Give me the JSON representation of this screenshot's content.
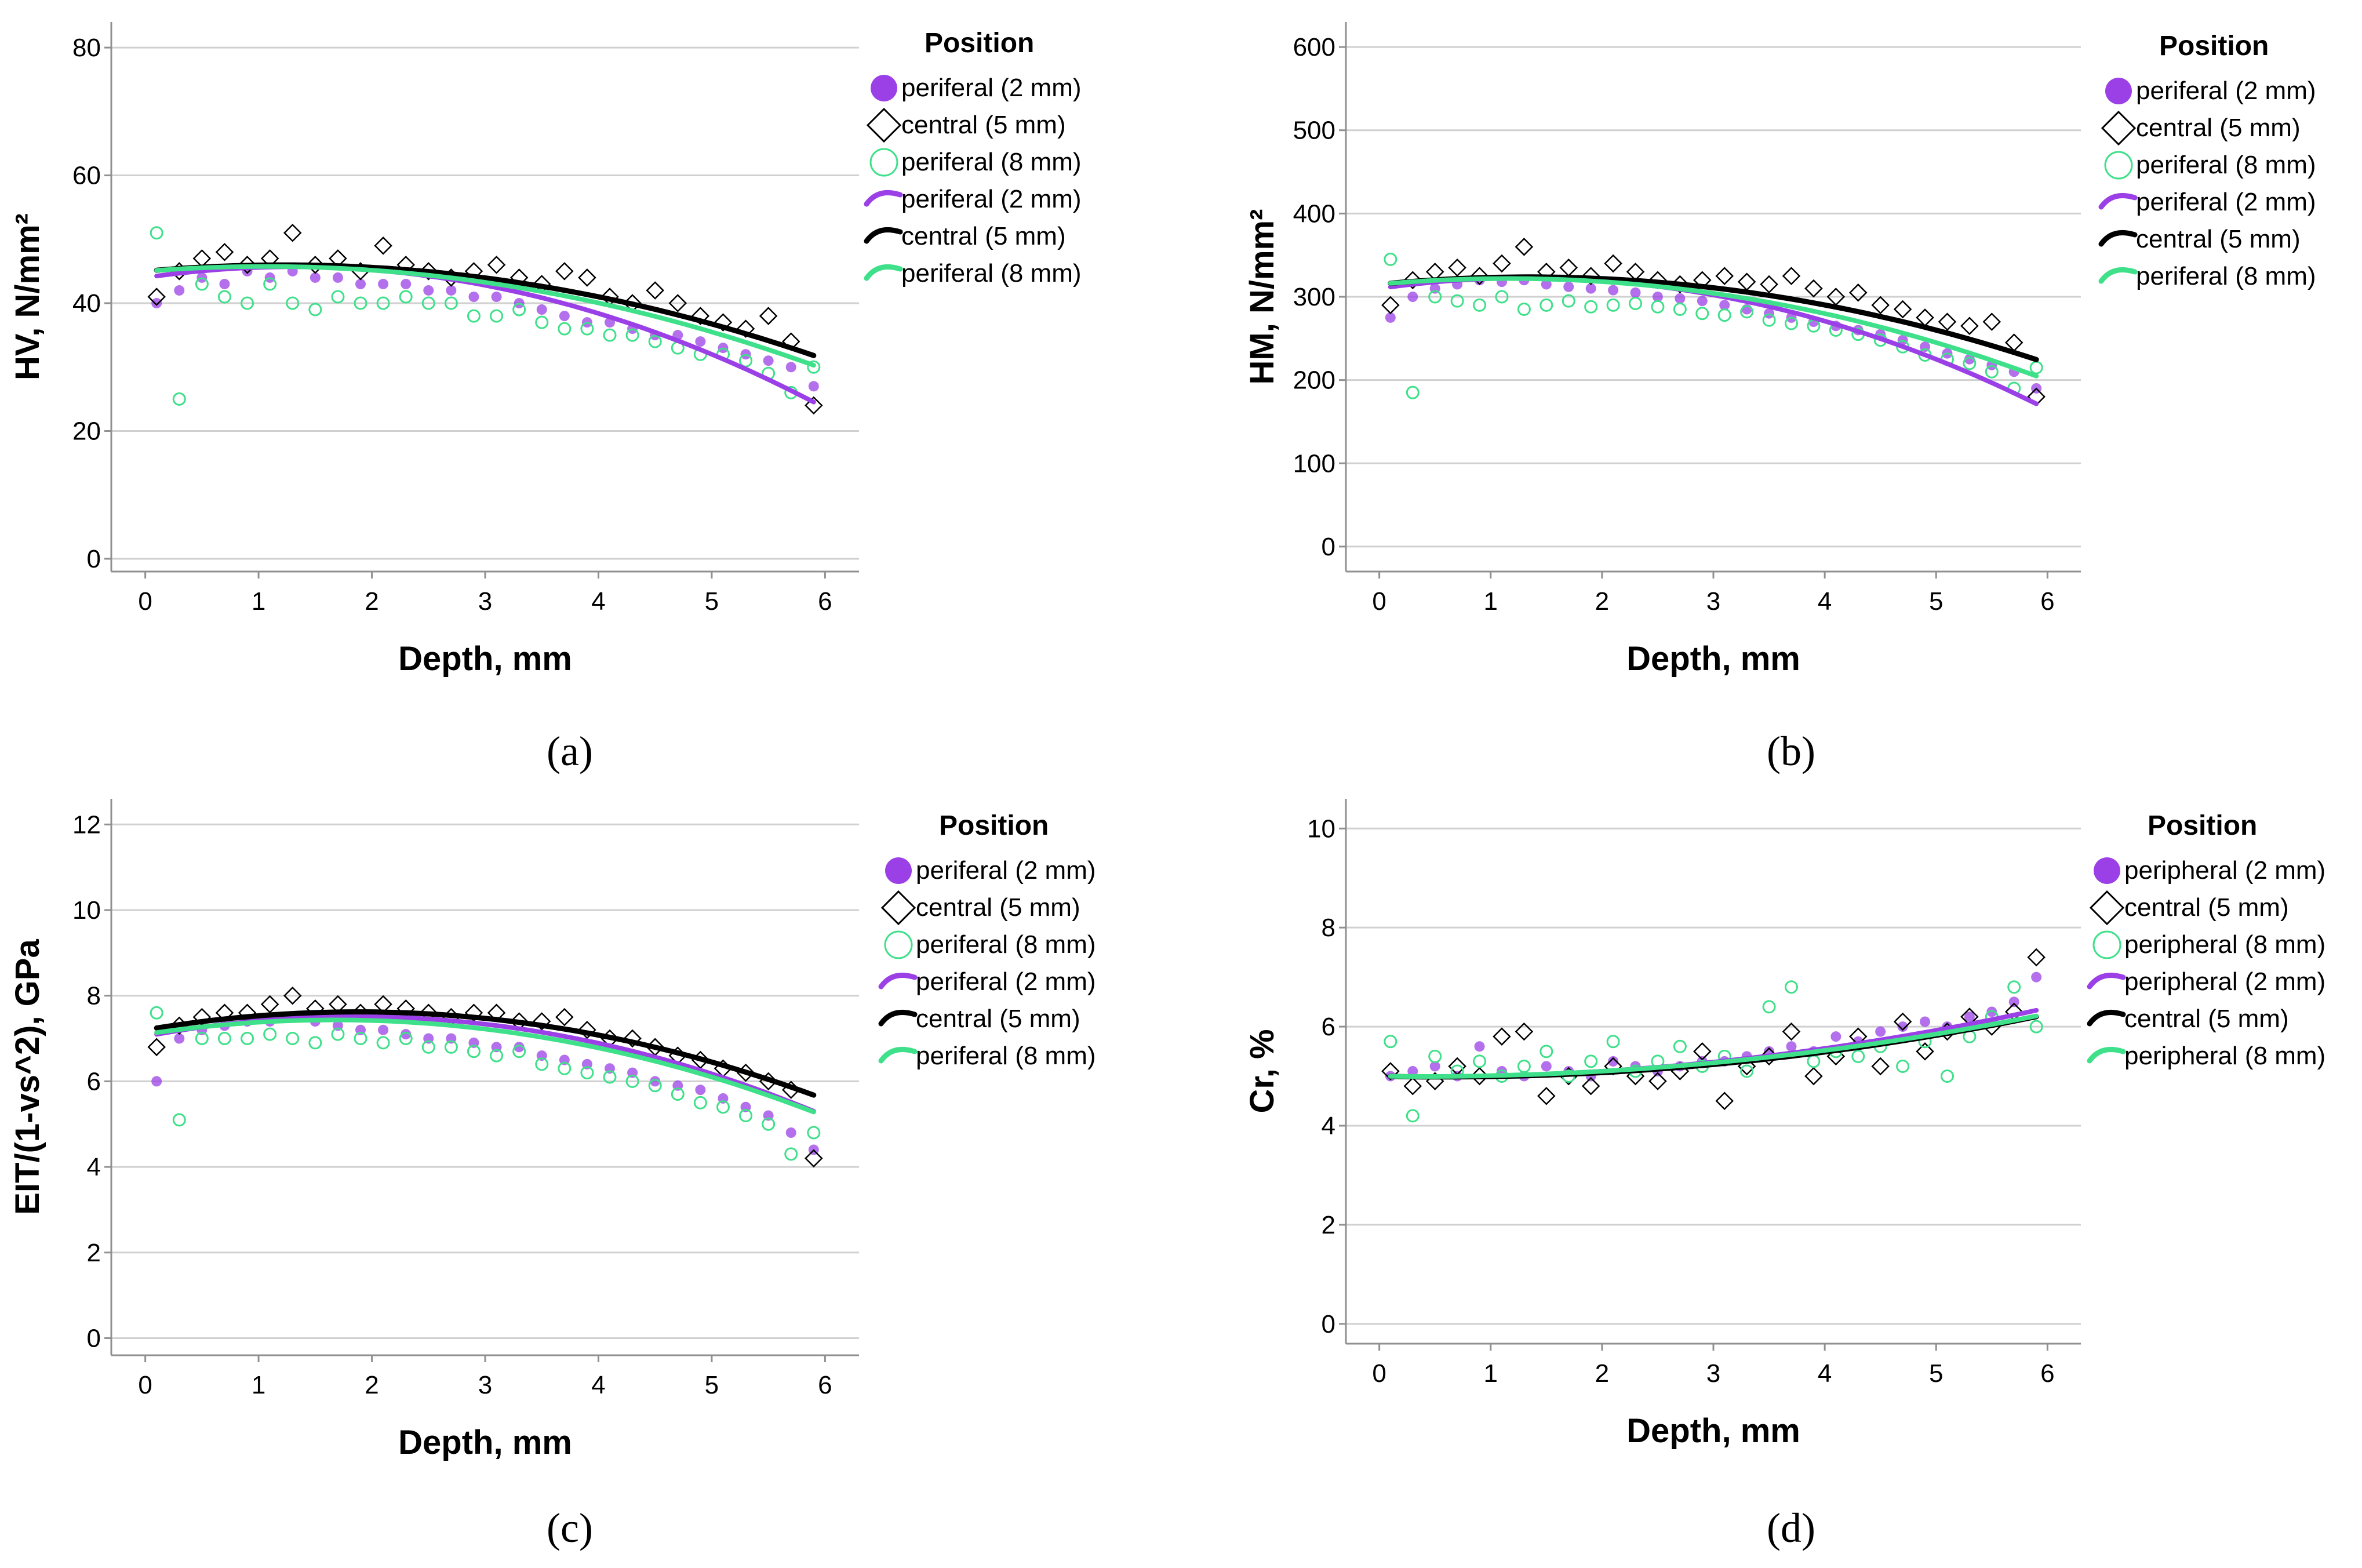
{
  "colors": {
    "purple": "#9b40e6",
    "black": "#000000",
    "green": "#3fe08a",
    "grid": "#d0d0d0",
    "axis": "#909090"
  },
  "chart_data": [
    {
      "id": "a",
      "type": "scatter",
      "caption": "(a)",
      "xlabel": "Depth, mm",
      "ylabel": "HV, N/mm²",
      "xlim": [
        -0.3,
        6.3
      ],
      "ylim": [
        -2,
        84
      ],
      "xticks": [
        "0",
        "1",
        "2",
        "3",
        "4",
        "5",
        "6"
      ],
      "yticks": [
        "0",
        "20",
        "40",
        "60",
        "80"
      ],
      "legend": {
        "title": "Position",
        "entries": [
          "periferal (2 mm)",
          "central (5 mm)",
          "periferal (8 mm)",
          "periferal (2 mm)",
          "central (5 mm)",
          "periferal (8 mm)"
        ]
      },
      "series": [
        {
          "name": "periferal (2 mm)",
          "marker": "filled-circle",
          "color": "purple",
          "x": [
            0.1,
            0.3,
            0.5,
            0.7,
            0.9,
            1.1,
            1.3,
            1.5,
            1.7,
            1.9,
            2.1,
            2.3,
            2.5,
            2.7,
            2.9,
            3.1,
            3.3,
            3.5,
            3.7,
            3.9,
            4.1,
            4.3,
            4.5,
            4.7,
            4.9,
            5.1,
            5.3,
            5.5,
            5.7,
            5.9
          ],
          "y": [
            40,
            42,
            44,
            43,
            45,
            44,
            45,
            44,
            44,
            43,
            43,
            43,
            42,
            42,
            41,
            41,
            40,
            39,
            38,
            37,
            37,
            36,
            35,
            35,
            34,
            33,
            32,
            31,
            30,
            27
          ]
        },
        {
          "name": "central (5 mm)",
          "marker": "diamond",
          "color": "black",
          "x": [
            0.1,
            0.3,
            0.5,
            0.7,
            0.9,
            1.1,
            1.3,
            1.5,
            1.7,
            1.9,
            2.1,
            2.3,
            2.5,
            2.7,
            2.9,
            3.1,
            3.3,
            3.5,
            3.7,
            3.9,
            4.1,
            4.3,
            4.5,
            4.7,
            4.9,
            5.1,
            5.3,
            5.5,
            5.7,
            5.9
          ],
          "y": [
            41,
            45,
            47,
            48,
            46,
            47,
            51,
            46,
            47,
            45,
            49,
            46,
            45,
            44,
            45,
            46,
            44,
            43,
            45,
            44,
            41,
            40,
            42,
            40,
            38,
            37,
            36,
            38,
            34,
            24
          ]
        },
        {
          "name": "periferal (8 mm)",
          "marker": "open-circle",
          "color": "green",
          "x": [
            0.1,
            0.3,
            0.5,
            0.7,
            0.9,
            1.1,
            1.3,
            1.5,
            1.7,
            1.9,
            2.1,
            2.3,
            2.5,
            2.7,
            2.9,
            3.1,
            3.3,
            3.5,
            3.7,
            3.9,
            4.1,
            4.3,
            4.5,
            4.7,
            4.9,
            5.1,
            5.3,
            5.5,
            5.7,
            5.9
          ],
          "y": [
            51,
            25,
            43,
            41,
            40,
            43,
            40,
            39,
            41,
            40,
            40,
            41,
            40,
            40,
            38,
            38,
            39,
            37,
            36,
            36,
            35,
            35,
            34,
            33,
            32,
            32,
            31,
            29,
            26,
            30
          ]
        },
        {
          "name": "periferal (2 mm)",
          "marker": "line",
          "color": "purple",
          "fit": [
            44.0,
            2.6,
            -1.0
          ]
        },
        {
          "name": "central (5 mm)",
          "marker": "line",
          "color": "black",
          "fit": [
            45.0,
            1.6,
            -0.65
          ]
        },
        {
          "name": "periferal (8 mm)",
          "marker": "line",
          "color": "green",
          "fit": [
            45.0,
            1.4,
            -0.66
          ]
        }
      ]
    },
    {
      "id": "b",
      "type": "scatter",
      "caption": "(b)",
      "xlabel": "Depth, mm",
      "ylabel": "HM, N/mm²",
      "xlim": [
        -0.3,
        6.3
      ],
      "ylim": [
        -30,
        630
      ],
      "xticks": [
        "0",
        "1",
        "2",
        "3",
        "4",
        "5",
        "6"
      ],
      "yticks": [
        "0",
        "100",
        "200",
        "300",
        "400",
        "500",
        "600"
      ],
      "legend": {
        "title": "Position",
        "entries": [
          "periferal (2 mm)",
          "central (5 mm)",
          "periferal (8 mm)",
          "periferal (2 mm)",
          "central (5 mm)",
          "periferal (8 mm)"
        ]
      },
      "series": [
        {
          "name": "periferal (2 mm)",
          "marker": "filled-circle",
          "color": "purple",
          "x": [
            0.1,
            0.3,
            0.5,
            0.7,
            0.9,
            1.1,
            1.3,
            1.5,
            1.7,
            1.9,
            2.1,
            2.3,
            2.5,
            2.7,
            2.9,
            3.1,
            3.3,
            3.5,
            3.7,
            3.9,
            4.1,
            4.3,
            4.5,
            4.7,
            4.9,
            5.1,
            5.3,
            5.5,
            5.7,
            5.9
          ],
          "y": [
            275,
            300,
            310,
            315,
            320,
            318,
            320,
            315,
            312,
            310,
            308,
            305,
            300,
            298,
            295,
            290,
            285,
            280,
            275,
            270,
            265,
            260,
            255,
            248,
            240,
            232,
            225,
            218,
            210,
            190
          ]
        },
        {
          "name": "central (5 mm)",
          "marker": "diamond",
          "color": "black",
          "x": [
            0.1,
            0.3,
            0.5,
            0.7,
            0.9,
            1.1,
            1.3,
            1.5,
            1.7,
            1.9,
            2.1,
            2.3,
            2.5,
            2.7,
            2.9,
            3.1,
            3.3,
            3.5,
            3.7,
            3.9,
            4.1,
            4.3,
            4.5,
            4.7,
            4.9,
            5.1,
            5.3,
            5.5,
            5.7,
            5.9
          ],
          "y": [
            290,
            320,
            330,
            335,
            325,
            340,
            360,
            330,
            335,
            325,
            340,
            330,
            320,
            315,
            320,
            325,
            318,
            315,
            325,
            310,
            300,
            305,
            290,
            285,
            275,
            270,
            265,
            270,
            245,
            180
          ]
        },
        {
          "name": "periferal (8 mm)",
          "marker": "open-circle",
          "color": "green",
          "x": [
            0.1,
            0.3,
            0.5,
            0.7,
            0.9,
            1.1,
            1.3,
            1.5,
            1.7,
            1.9,
            2.1,
            2.3,
            2.5,
            2.7,
            2.9,
            3.1,
            3.3,
            3.5,
            3.7,
            3.9,
            4.1,
            4.3,
            4.5,
            4.7,
            4.9,
            5.1,
            5.3,
            5.5,
            5.7,
            5.9
          ],
          "y": [
            345,
            185,
            300,
            295,
            290,
            300,
            285,
            290,
            295,
            288,
            290,
            292,
            288,
            285,
            280,
            278,
            282,
            272,
            268,
            265,
            260,
            255,
            248,
            240,
            230,
            225,
            220,
            210,
            190,
            215
          ]
        },
        {
          "name": "periferal (2 mm)",
          "marker": "line",
          "color": "purple",
          "fit": [
            310,
            19,
            -7.2
          ]
        },
        {
          "name": "central (5 mm)",
          "marker": "line",
          "color": "black",
          "fit": [
            315,
            13,
            -4.8
          ]
        },
        {
          "name": "periferal (8 mm)",
          "marker": "line",
          "color": "green",
          "fit": [
            315,
            12,
            -5.2
          ]
        }
      ]
    },
    {
      "id": "c",
      "type": "scatter",
      "caption": "(c)",
      "xlabel": "Depth, mm",
      "ylabel": "EIT/(1-vs^2), GPa",
      "xlim": [
        -0.3,
        6.3
      ],
      "ylim": [
        -0.4,
        12.6
      ],
      "xticks": [
        "0",
        "1",
        "2",
        "3",
        "4",
        "5",
        "6"
      ],
      "yticks": [
        "0",
        "2",
        "4",
        "6",
        "8",
        "10",
        "12"
      ],
      "legend": {
        "title": "Position",
        "entries": [
          "periferal (2 mm)",
          "central (5 mm)",
          "periferal (8 mm)",
          "periferal (2 mm)",
          "central (5 mm)",
          "periferal (8 mm)"
        ]
      },
      "series": [
        {
          "name": "periferal (2 mm)",
          "marker": "filled-circle",
          "color": "purple",
          "x": [
            0.1,
            0.3,
            0.5,
            0.7,
            0.9,
            1.1,
            1.3,
            1.5,
            1.7,
            1.9,
            2.1,
            2.3,
            2.5,
            2.7,
            2.9,
            3.1,
            3.3,
            3.5,
            3.7,
            3.9,
            4.1,
            4.3,
            4.5,
            4.7,
            4.9,
            5.1,
            5.3,
            5.5,
            5.7,
            5.9
          ],
          "y": [
            6.0,
            7.0,
            7.2,
            7.3,
            7.4,
            7.4,
            7.5,
            7.4,
            7.3,
            7.2,
            7.2,
            7.1,
            7.0,
            7.0,
            6.9,
            6.8,
            6.8,
            6.6,
            6.5,
            6.4,
            6.3,
            6.2,
            6.0,
            5.9,
            5.8,
            5.6,
            5.4,
            5.2,
            4.8,
            4.4
          ]
        },
        {
          "name": "central (5 mm)",
          "marker": "diamond",
          "color": "black",
          "x": [
            0.1,
            0.3,
            0.5,
            0.7,
            0.9,
            1.1,
            1.3,
            1.5,
            1.7,
            1.9,
            2.1,
            2.3,
            2.5,
            2.7,
            2.9,
            3.1,
            3.3,
            3.5,
            3.7,
            3.9,
            4.1,
            4.3,
            4.5,
            4.7,
            4.9,
            5.1,
            5.3,
            5.5,
            5.7,
            5.9
          ],
          "y": [
            6.8,
            7.3,
            7.5,
            7.6,
            7.6,
            7.8,
            8.0,
            7.7,
            7.8,
            7.6,
            7.8,
            7.7,
            7.6,
            7.5,
            7.6,
            7.6,
            7.4,
            7.4,
            7.5,
            7.2,
            7.0,
            7.0,
            6.8,
            6.6,
            6.5,
            6.3,
            6.2,
            6.0,
            5.8,
            4.2
          ]
        },
        {
          "name": "periferal (8 mm)",
          "marker": "open-circle",
          "color": "green",
          "x": [
            0.1,
            0.3,
            0.5,
            0.7,
            0.9,
            1.1,
            1.3,
            1.5,
            1.7,
            1.9,
            2.1,
            2.3,
            2.5,
            2.7,
            2.9,
            3.1,
            3.3,
            3.5,
            3.7,
            3.9,
            4.1,
            4.3,
            4.5,
            4.7,
            4.9,
            5.1,
            5.3,
            5.5,
            5.7,
            5.9
          ],
          "y": [
            7.6,
            5.1,
            7.0,
            7.0,
            7.0,
            7.1,
            7.0,
            6.9,
            7.1,
            7.0,
            6.9,
            7.0,
            6.8,
            6.8,
            6.7,
            6.6,
            6.7,
            6.4,
            6.3,
            6.2,
            6.1,
            6.0,
            5.9,
            5.7,
            5.5,
            5.4,
            5.2,
            5.0,
            4.3,
            4.8
          ]
        },
        {
          "name": "periferal (2 mm)",
          "marker": "line",
          "color": "purple",
          "fit": [
            7.05,
            0.5,
            -0.135
          ]
        },
        {
          "name": "central (5 mm)",
          "marker": "line",
          "color": "black",
          "fit": [
            7.2,
            0.45,
            -0.12
          ]
        },
        {
          "name": "periferal (8 mm)",
          "marker": "line",
          "color": "green",
          "fit": [
            7.1,
            0.4,
            -0.12
          ]
        }
      ]
    },
    {
      "id": "d",
      "type": "scatter",
      "caption": "(d)",
      "xlabel": "Depth, mm",
      "ylabel": "Cr, %",
      "xlim": [
        -0.3,
        6.3
      ],
      "ylim": [
        -0.4,
        10.6
      ],
      "xticks": [
        "0",
        "1",
        "2",
        "3",
        "4",
        "5",
        "6"
      ],
      "yticks": [
        "0",
        "2",
        "4",
        "6",
        "8",
        "10"
      ],
      "legend": {
        "title": "Position",
        "entries": [
          "peripheral (2 mm)",
          "central (5 mm)",
          "peripheral (8 mm)",
          "peripheral (2 mm)",
          "central (5 mm)",
          "peripheral (8 mm)"
        ]
      },
      "series": [
        {
          "name": "peripheral (2 mm)",
          "marker": "filled-circle",
          "color": "purple",
          "x": [
            0.1,
            0.3,
            0.5,
            0.7,
            0.9,
            1.1,
            1.3,
            1.5,
            1.7,
            1.9,
            2.1,
            2.3,
            2.5,
            2.7,
            2.9,
            3.1,
            3.3,
            3.5,
            3.7,
            3.9,
            4.1,
            4.3,
            4.5,
            4.7,
            4.9,
            5.1,
            5.3,
            5.5,
            5.7,
            5.9
          ],
          "y": [
            5.0,
            5.1,
            5.2,
            5.0,
            5.6,
            5.1,
            5.0,
            5.2,
            5.1,
            5.0,
            5.3,
            5.2,
            5.1,
            5.2,
            5.3,
            5.3,
            5.4,
            5.5,
            5.6,
            5.5,
            5.8,
            5.7,
            5.9,
            6.0,
            6.1,
            6.0,
            6.2,
            6.3,
            6.5,
            7.0
          ]
        },
        {
          "name": "central (5 mm)",
          "marker": "diamond",
          "color": "black",
          "x": [
            0.1,
            0.3,
            0.5,
            0.7,
            0.9,
            1.1,
            1.3,
            1.5,
            1.7,
            1.9,
            2.1,
            2.3,
            2.5,
            2.7,
            2.9,
            3.1,
            3.3,
            3.5,
            3.7,
            3.9,
            4.1,
            4.3,
            4.5,
            4.7,
            4.9,
            5.1,
            5.3,
            5.5,
            5.7,
            5.9
          ],
          "y": [
            5.1,
            4.8,
            4.9,
            5.2,
            5.0,
            5.8,
            5.9,
            4.6,
            5.0,
            4.8,
            5.2,
            5.0,
            4.9,
            5.1,
            5.5,
            4.5,
            5.2,
            5.4,
            5.9,
            5.0,
            5.4,
            5.8,
            5.2,
            6.1,
            5.5,
            5.9,
            6.2,
            6.0,
            6.3,
            7.4
          ]
        },
        {
          "name": "peripheral (8 mm)",
          "marker": "open-circle",
          "color": "green",
          "x": [
            0.1,
            0.3,
            0.5,
            0.7,
            0.9,
            1.1,
            1.3,
            1.5,
            1.7,
            1.9,
            2.1,
            2.3,
            2.5,
            2.7,
            2.9,
            3.1,
            3.3,
            3.5,
            3.7,
            3.9,
            4.1,
            4.3,
            4.5,
            4.7,
            4.9,
            5.1,
            5.3,
            5.5,
            5.7,
            5.9
          ],
          "y": [
            5.7,
            4.2,
            5.4,
            5.1,
            5.3,
            5.0,
            5.2,
            5.5,
            5.0,
            5.3,
            5.7,
            5.1,
            5.3,
            5.6,
            5.2,
            5.4,
            5.1,
            6.4,
            6.8,
            5.3,
            5.5,
            5.4,
            5.6,
            5.2,
            5.7,
            5.0,
            5.8,
            6.2,
            6.8,
            6.0
          ]
        },
        {
          "name": "peripheral (2 mm)",
          "marker": "line",
          "color": "purple",
          "fit": [
            5.0,
            -0.04,
            0.045
          ]
        },
        {
          "name": "central (5 mm)",
          "marker": "line",
          "color": "black",
          "fit": [
            5.0,
            -0.05,
            0.043
          ]
        },
        {
          "name": "peripheral (8 mm)",
          "marker": "line",
          "color": "green",
          "fit": [
            5.0,
            -0.03,
            0.04
          ]
        }
      ]
    }
  ]
}
